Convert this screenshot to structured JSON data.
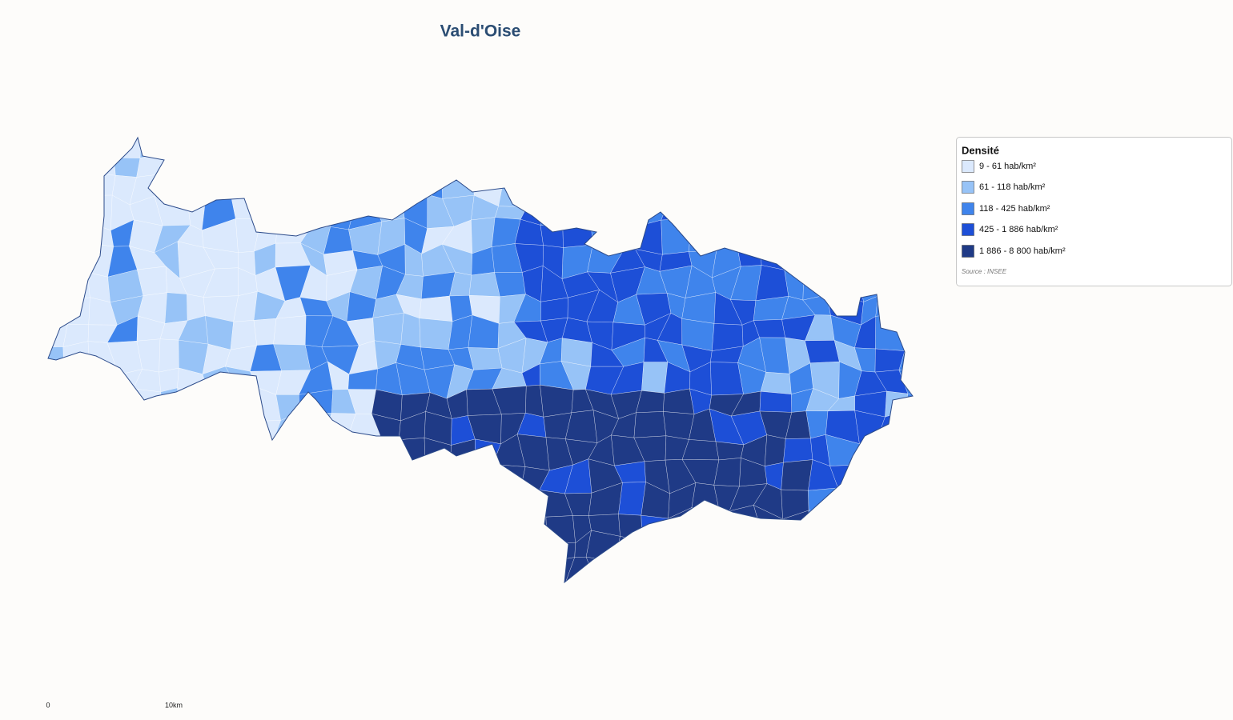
{
  "header": {
    "title": "Val-d'Oise"
  },
  "legend": {
    "title": "Densité",
    "items": [
      {
        "label": "9 - 61 hab/km²",
        "color": "#dbe9fd"
      },
      {
        "label": "61 - 118 hab/km²",
        "color": "#97c3f7"
      },
      {
        "label": "118 - 425 hab/km²",
        "color": "#3f84ec"
      },
      {
        "label": "425 - 1 886 hab/km²",
        "color": "#1d4fd7"
      },
      {
        "label": "1 886 - 8 800 hab/km²",
        "color": "#1f3a86"
      }
    ],
    "source": "Source : INSEE"
  },
  "scale": {
    "start": "0",
    "end": "10km"
  }
}
